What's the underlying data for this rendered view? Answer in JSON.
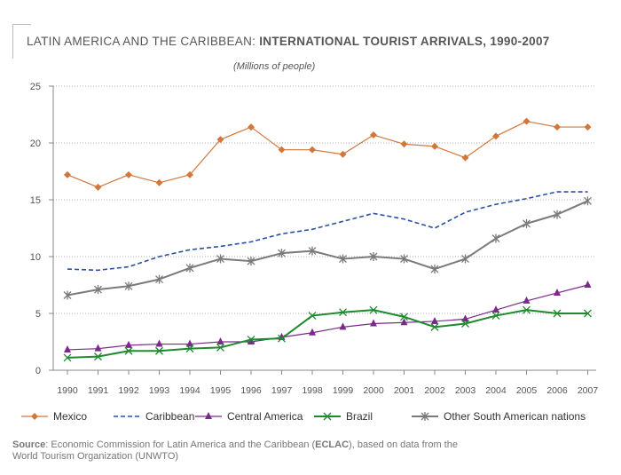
{
  "title": {
    "prefix": "LATIN AMERICA AND THE CARIBBEAN: ",
    "bold": "INTERNATIONAL TOURIST ARRIVALS, 1990-2007"
  },
  "subtitle": "(Millions of people)",
  "chart_data": {
    "type": "line",
    "title": "LATIN AMERICA AND THE CARIBBEAN: INTERNATIONAL TOURIST ARRIVALS, 1990-2007",
    "ylabel": "(Millions of people)",
    "xlabel": "",
    "ylim": [
      0,
      25
    ],
    "yticks": [
      0,
      5,
      10,
      15,
      20,
      25
    ],
    "grid": true,
    "legend_position": "bottom",
    "categories": [
      "1990",
      "1991",
      "1992",
      "1993",
      "1994",
      "1995",
      "1996",
      "1997",
      "1998",
      "1999",
      "2000",
      "2001",
      "2002",
      "2003",
      "2004",
      "2005",
      "2006",
      "2007"
    ],
    "series": [
      {
        "name": "Mexico",
        "color": "#d2773a",
        "marker": "diamond",
        "dash": false,
        "width": 1.2,
        "values": [
          17.2,
          16.1,
          17.2,
          16.5,
          17.2,
          20.3,
          21.4,
          19.4,
          19.4,
          19.0,
          20.7,
          19.9,
          19.7,
          18.7,
          20.6,
          21.9,
          21.4,
          21.4
        ]
      },
      {
        "name": "Caribbean",
        "color": "#2a4fa0",
        "marker": "none",
        "dash": true,
        "width": 1.6,
        "values": [
          8.9,
          8.8,
          9.1,
          10.0,
          10.6,
          10.9,
          11.3,
          12.0,
          12.4,
          13.1,
          13.8,
          13.3,
          12.5,
          13.9,
          14.6,
          15.1,
          15.7,
          15.7
        ]
      },
      {
        "name": "Central America",
        "color": "#7a2a8a",
        "marker": "triangle",
        "dash": false,
        "width": 1.2,
        "values": [
          1.8,
          1.9,
          2.2,
          2.3,
          2.3,
          2.5,
          2.5,
          2.9,
          3.3,
          3.8,
          4.1,
          4.2,
          4.3,
          4.5,
          5.3,
          6.1,
          6.8,
          7.5
        ]
      },
      {
        "name": "Brazil",
        "color": "#1e8a2e",
        "marker": "x",
        "dash": false,
        "width": 2.0,
        "values": [
          1.1,
          1.2,
          1.7,
          1.7,
          1.9,
          2.0,
          2.7,
          2.8,
          4.8,
          5.1,
          5.3,
          4.7,
          3.8,
          4.1,
          4.8,
          5.3,
          5.0,
          5.0
        ]
      },
      {
        "name": "Other South American nations",
        "color": "#7a7a7a",
        "marker": "asterisk",
        "dash": false,
        "width": 2.0,
        "values": [
          6.6,
          7.1,
          7.4,
          8.0,
          9.0,
          9.8,
          9.6,
          10.3,
          10.5,
          9.8,
          10.0,
          9.8,
          8.9,
          9.8,
          11.6,
          12.9,
          13.7,
          14.9
        ]
      }
    ]
  },
  "source": {
    "label": "Source",
    "text_a": ":  Economic Commission for Latin America and the Caribbean (",
    "bold": "ECLAC",
    "text_b": "), based on data from the",
    "line2": "World Tourism Organization (UNWTO)"
  }
}
